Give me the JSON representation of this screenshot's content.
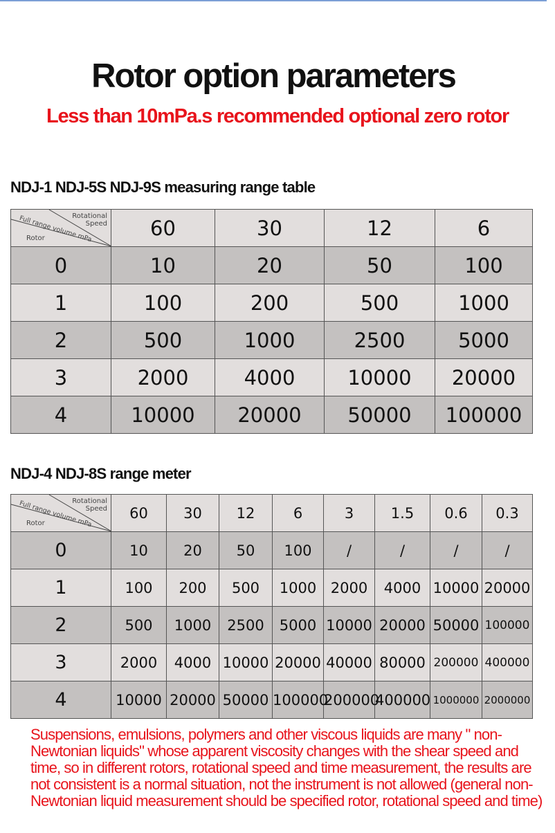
{
  "title": "Rotor option parameters",
  "subtitle": "Less than 10mPa.s recommended optional zero rotor",
  "corner": {
    "speed": "Rotational Speed",
    "range": "Full range volume mPa",
    "rotor": "Rotor"
  },
  "table1": {
    "heading": "NDJ-1 NDJ-5S NDJ-9S measuring range table",
    "speeds": [
      "60",
      "30",
      "12",
      "6"
    ],
    "rows": [
      {
        "rotor": "0",
        "values": [
          "10",
          "20",
          "50",
          "100"
        ]
      },
      {
        "rotor": "1",
        "values": [
          "100",
          "200",
          "500",
          "1000"
        ]
      },
      {
        "rotor": "2",
        "values": [
          "500",
          "1000",
          "2500",
          "5000"
        ]
      },
      {
        "rotor": "3",
        "values": [
          "2000",
          "4000",
          "10000",
          "20000"
        ]
      },
      {
        "rotor": "4",
        "values": [
          "10000",
          "20000",
          "50000",
          "100000"
        ]
      }
    ]
  },
  "table2": {
    "heading": "NDJ-4 NDJ-8S range meter",
    "speeds": [
      "60",
      "30",
      "12",
      "6",
      "3",
      "1.5",
      "0.6",
      "0.3"
    ],
    "rows": [
      {
        "rotor": "0",
        "values": [
          "10",
          "20",
          "50",
          "100",
          "/",
          "/",
          "/",
          "/"
        ]
      },
      {
        "rotor": "1",
        "values": [
          "100",
          "200",
          "500",
          "1000",
          "2000",
          "4000",
          "10000",
          "20000"
        ]
      },
      {
        "rotor": "2",
        "values": [
          "500",
          "1000",
          "2500",
          "5000",
          "10000",
          "20000",
          "50000",
          "100000"
        ]
      },
      {
        "rotor": "3",
        "values": [
          "2000",
          "4000",
          "10000",
          "20000",
          "40000",
          "80000",
          "200000",
          "400000"
        ]
      },
      {
        "rotor": "4",
        "values": [
          "10000",
          "20000",
          "50000",
          "100000",
          "200000",
          "400000",
          "1000000",
          "2000000"
        ]
      }
    ]
  },
  "note": "Suspensions, emulsions, polymers and other viscous liquids are many \" non-Newtonian liquids\" whose apparent viscosity changes with the shear speed and time, so in different rotors, rotational speed and time measurement, the results are not consistent is a normal situation, not the instrument is not allowed (general non-Newtonian liquid measurement should be specified rotor, rotational speed and time)"
}
